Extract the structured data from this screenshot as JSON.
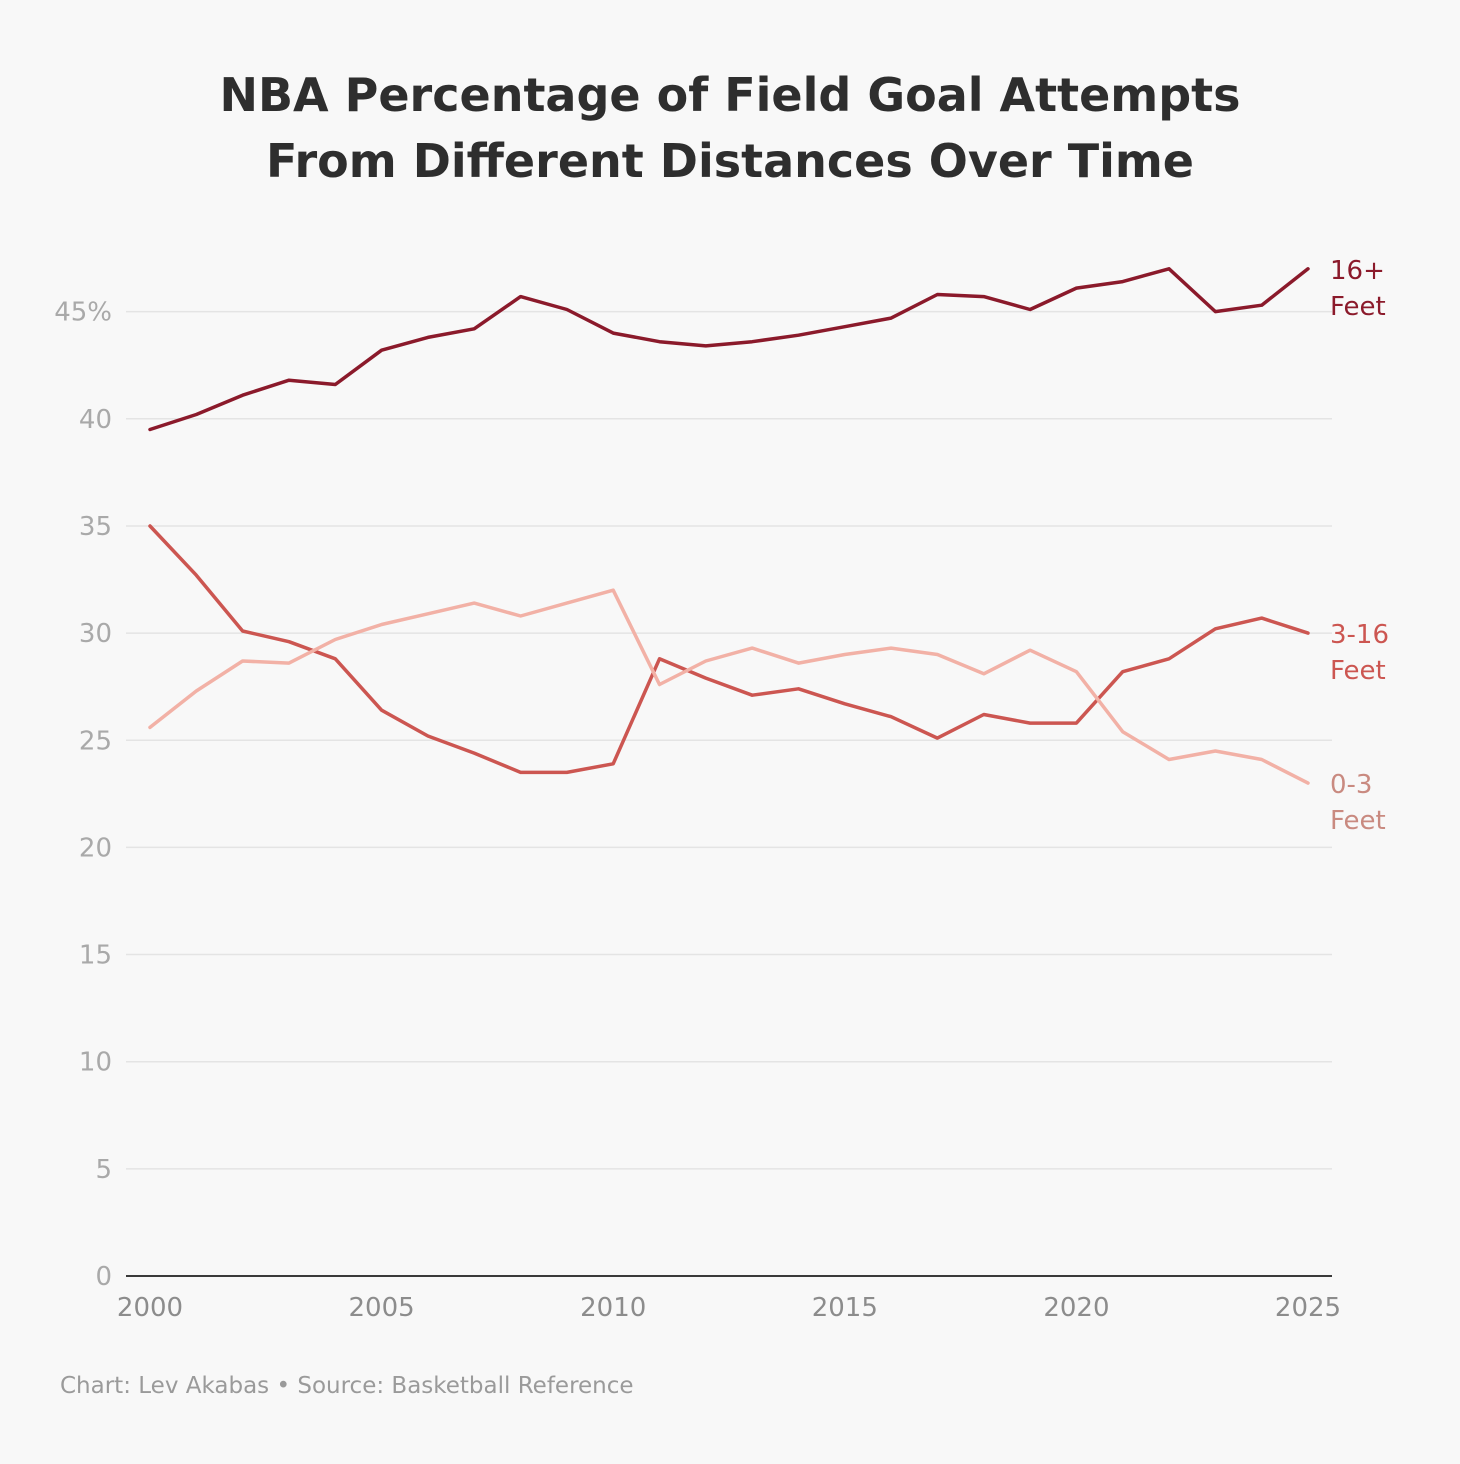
{
  "chart_data": {
    "type": "line",
    "title_lines": [
      "NBA Percentage of Field Goal Attempts",
      "From Different Distances Over Time"
    ],
    "xlabel": "",
    "ylabel": "",
    "x": [
      2000,
      2001,
      2002,
      2003,
      2004,
      2005,
      2006,
      2007,
      2008,
      2009,
      2010,
      2011,
      2012,
      2013,
      2014,
      2015,
      2016,
      2017,
      2018,
      2019,
      2020,
      2021,
      2022,
      2023,
      2024,
      2025
    ],
    "xlim": [
      2000,
      2025
    ],
    "ylim": [
      0,
      48
    ],
    "x_ticks": [
      2000,
      2005,
      2010,
      2015,
      2020,
      2025
    ],
    "y_ticks": [
      0,
      5,
      10,
      15,
      20,
      25,
      30,
      35,
      40,
      45
    ],
    "y_tick_labels": [
      "0",
      "5",
      "10",
      "15",
      "20",
      "25",
      "30",
      "35",
      "40",
      "45%"
    ],
    "grid": true,
    "series": [
      {
        "name_lines": [
          "16+",
          "Feet"
        ],
        "color": "#8b1a2b",
        "values": [
          39.5,
          40.2,
          41.1,
          41.8,
          41.6,
          43.2,
          43.8,
          44.2,
          45.7,
          45.1,
          44.0,
          43.6,
          43.4,
          43.6,
          43.9,
          44.3,
          44.7,
          45.8,
          45.7,
          45.1,
          46.1,
          46.4,
          47.0,
          45.0,
          45.3,
          47.0
        ]
      },
      {
        "name_lines": [
          "3-16",
          "Feet"
        ],
        "color": "#cc5651",
        "values": [
          35.0,
          32.7,
          30.1,
          29.6,
          28.8,
          26.4,
          25.2,
          24.4,
          23.5,
          23.5,
          23.9,
          28.8,
          27.9,
          27.1,
          27.4,
          26.7,
          26.1,
          25.1,
          26.2,
          25.8,
          25.8,
          28.2,
          28.8,
          30.2,
          30.7,
          30.0
        ]
      },
      {
        "name_lines": [
          "0-3",
          "Feet"
        ],
        "color": "#f2b1a6",
        "values": [
          25.6,
          27.3,
          28.7,
          28.6,
          29.7,
          30.4,
          30.9,
          31.4,
          30.8,
          31.4,
          32.0,
          27.6,
          28.7,
          29.3,
          28.6,
          29.0,
          29.3,
          29.0,
          28.1,
          29.2,
          28.2,
          25.4,
          24.1,
          24.5,
          24.1,
          23.0
        ]
      }
    ],
    "credit": "Chart: Lev Akabas • Source: Basketball Reference"
  }
}
